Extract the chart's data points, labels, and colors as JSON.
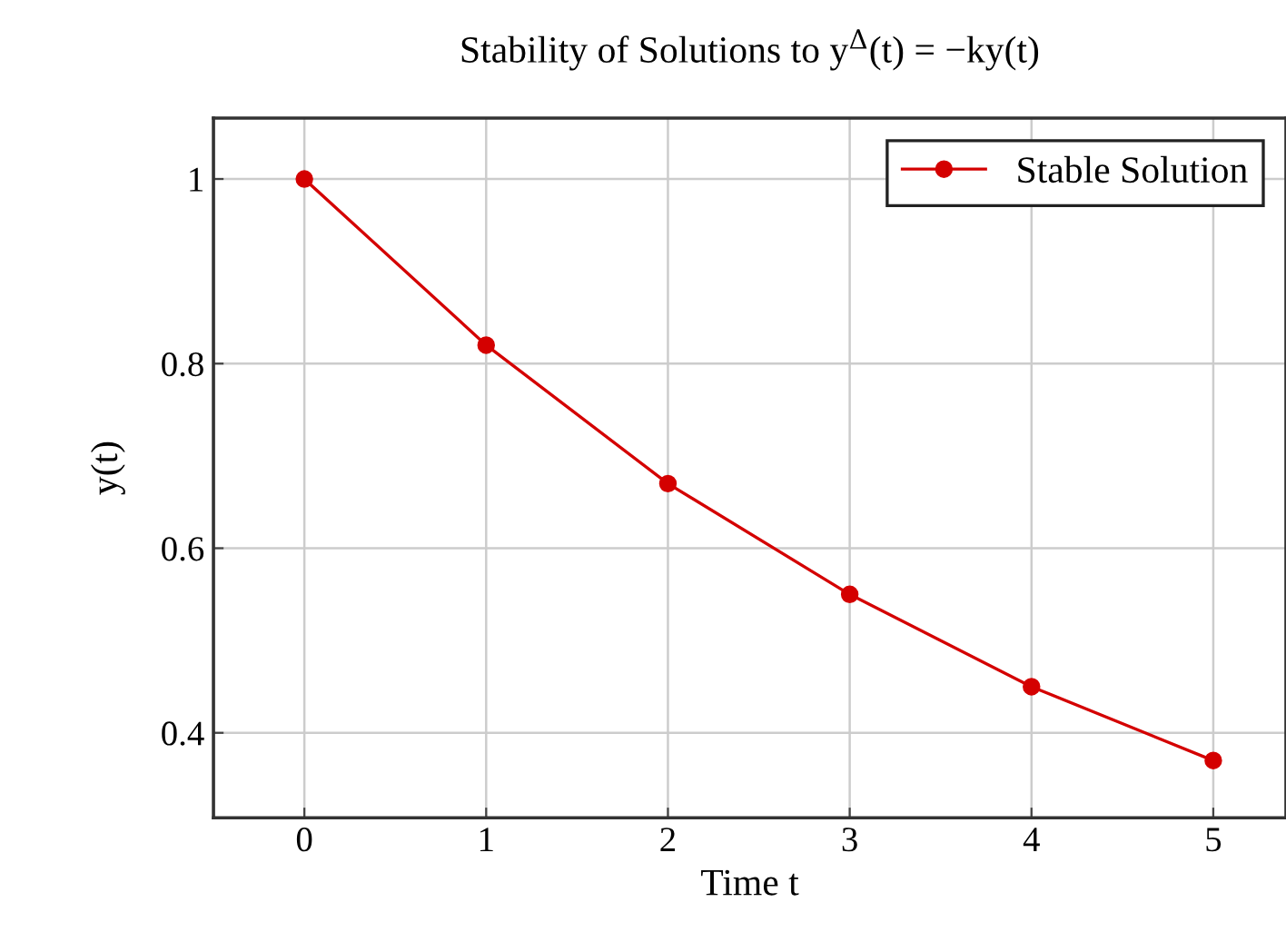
{
  "chart_data": {
    "type": "line",
    "title": "Stability of Solutions to y$^{Δ}$(t) = −ky(t)",
    "xlabel": "Time t",
    "ylabel": "y(t)",
    "x": [
      0,
      1,
      2,
      3,
      4,
      5
    ],
    "series": [
      {
        "name": "Stable Solution",
        "color": "#d40000",
        "values": [
          1,
          0.82,
          0.67,
          0.55,
          0.45,
          0.37
        ]
      }
    ],
    "xlim": [
      -0.5,
      5.4
    ],
    "ylim": [
      0.308,
      1.066
    ],
    "xticks": [
      0,
      1,
      2,
      3,
      4,
      5
    ],
    "yticks": [
      0.4,
      0.6,
      0.8,
      1
    ],
    "grid": true,
    "legend": "top right",
    "marker": "circle",
    "line_style": "solid"
  }
}
